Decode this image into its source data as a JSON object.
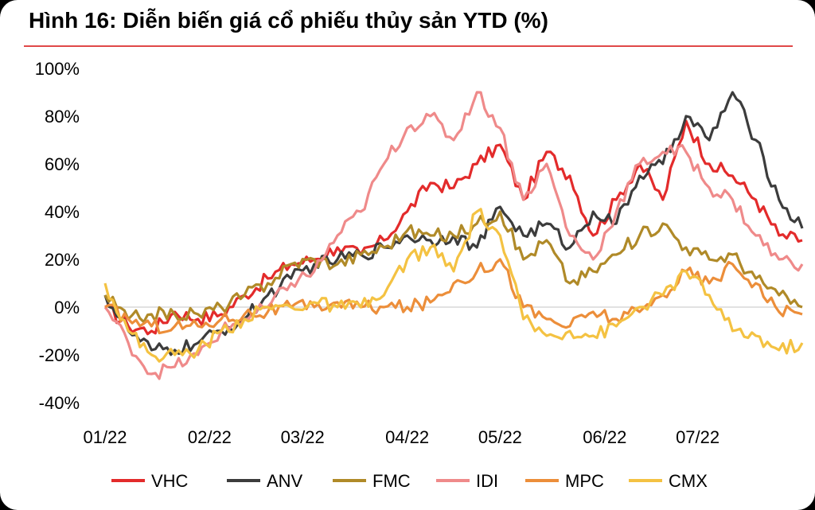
{
  "title": "Hình 16: Diễn biến giá cổ phiếu thủy sản YTD (%)",
  "chart_data": {
    "type": "line",
    "ylim": [
      -40,
      100
    ],
    "yticks": [
      -40,
      -20,
      0,
      20,
      40,
      60,
      80,
      100
    ],
    "yticklabels": [
      "-40%",
      "-20%",
      "0%",
      "20%",
      "40%",
      "60%",
      "80%",
      "100%"
    ],
    "xticks": [
      0,
      4.5,
      8.5,
      13,
      17,
      21.5,
      25.5
    ],
    "xticklabels": [
      "01/22",
      "02/22",
      "03/22",
      "04/22",
      "05/22",
      "06/22",
      "07/22"
    ],
    "xlim": [
      0,
      30
    ],
    "x": [
      0,
      1,
      2,
      3,
      4,
      5,
      6,
      7,
      8,
      9,
      10,
      11,
      12,
      13,
      14,
      15,
      16,
      17,
      18,
      19,
      20,
      21,
      22,
      23,
      24,
      25,
      26,
      27,
      28,
      29,
      30
    ],
    "series": [
      {
        "name": "VHC",
        "color": "#e32b2b",
        "values": [
          0,
          -8,
          -10,
          -2,
          -5,
          -3,
          5,
          12,
          18,
          20,
          25,
          22,
          28,
          40,
          52,
          50,
          60,
          68,
          45,
          65,
          55,
          30,
          45,
          60,
          45,
          78,
          60,
          55,
          45,
          30,
          28
        ]
      },
      {
        "name": "ANV",
        "color": "#3c3c3c",
        "values": [
          5,
          -10,
          -18,
          -18,
          -15,
          -10,
          -5,
          5,
          12,
          18,
          20,
          22,
          25,
          30,
          28,
          30,
          25,
          42,
          30,
          35,
          25,
          40,
          35,
          55,
          60,
          80,
          70,
          90,
          70,
          45,
          33
        ]
      },
      {
        "name": "FMC",
        "color": "#b08a28",
        "values": [
          5,
          -5,
          -3,
          -3,
          -3,
          0,
          5,
          10,
          18,
          20,
          18,
          22,
          25,
          32,
          30,
          30,
          35,
          40,
          20,
          28,
          10,
          15,
          22,
          30,
          35,
          25,
          20,
          22,
          12,
          5,
          0
        ]
      },
      {
        "name": "IDI",
        "color": "#ef8a8a",
        "values": [
          0,
          -15,
          -28,
          -25,
          -20,
          -10,
          -5,
          0,
          10,
          15,
          30,
          40,
          60,
          75,
          80,
          70,
          90,
          75,
          45,
          60,
          30,
          20,
          40,
          60,
          65,
          65,
          50,
          45,
          30,
          20,
          18
        ]
      },
      {
        "name": "MPC",
        "color": "#ec8e3a",
        "values": [
          0,
          -5,
          -8,
          -8,
          -8,
          -5,
          -3,
          -2,
          0,
          0,
          2,
          0,
          0,
          0,
          2,
          10,
          15,
          20,
          0,
          -5,
          -8,
          -2,
          -5,
          -2,
          5,
          15,
          10,
          18,
          10,
          -2,
          -3
        ]
      },
      {
        "name": "CMX",
        "color": "#f4c242",
        "values": [
          10,
          -10,
          -20,
          -20,
          -18,
          -10,
          -5,
          0,
          0,
          2,
          0,
          0,
          5,
          20,
          25,
          15,
          40,
          30,
          -5,
          -12,
          -10,
          -12,
          -8,
          0,
          5,
          15,
          5,
          -10,
          -12,
          -18,
          -15
        ]
      }
    ],
    "legend": {
      "placement": "bottom"
    },
    "grid": false
  }
}
